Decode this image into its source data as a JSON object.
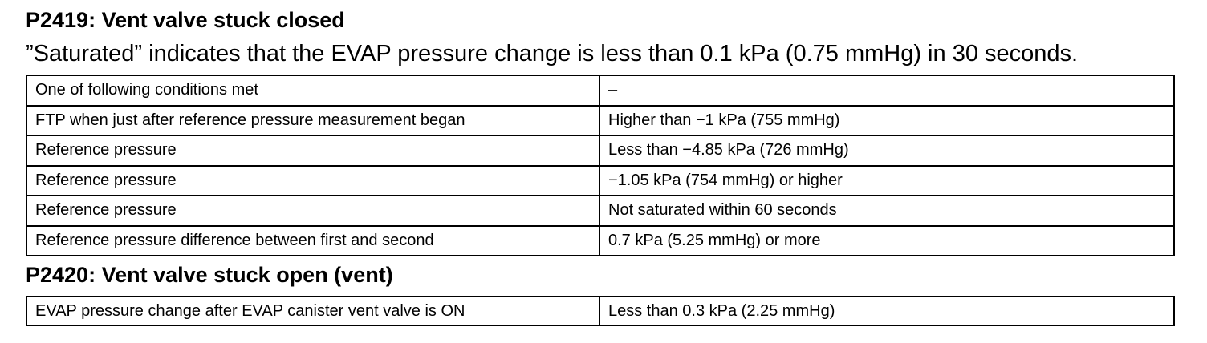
{
  "section1": {
    "heading": "P2419: Vent valve stuck closed",
    "note": "”Saturated” indicates that the EVAP pressure change is less than 0.1 kPa (0.75 mmHg) in 30 seconds.",
    "rows": [
      {
        "condition": "One of following conditions met",
        "value": "–"
      },
      {
        "condition": "FTP when just after reference pressure measurement began",
        "value": "Higher than −1 kPa (755 mmHg)"
      },
      {
        "condition": "Reference pressure",
        "value": "Less than −4.85 kPa (726 mmHg)"
      },
      {
        "condition": "Reference pressure",
        "value": "−1.05 kPa (754 mmHg) or higher"
      },
      {
        "condition": "Reference pressure",
        "value": "Not saturated within 60 seconds"
      },
      {
        "condition": "Reference pressure difference between first and second",
        "value": "0.7 kPa (5.25 mmHg) or more"
      }
    ]
  },
  "section2": {
    "heading": "P2420: Vent valve stuck open (vent)",
    "rows": [
      {
        "condition": "EVAP pressure change after EVAP canister vent valve is ON",
        "value": "Less than 0.3 kPa (2.25 mmHg)"
      }
    ]
  }
}
